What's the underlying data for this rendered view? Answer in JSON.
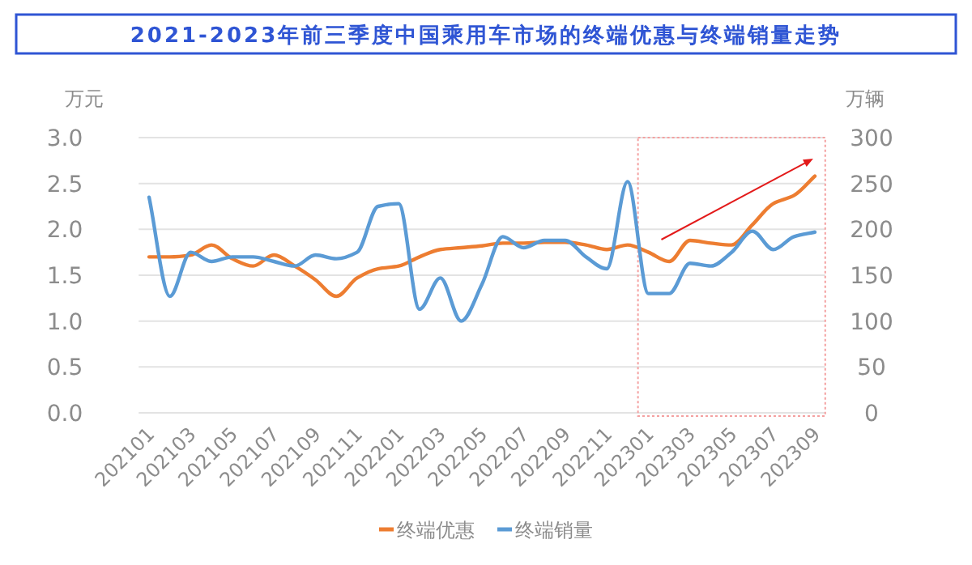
{
  "chart_data": {
    "type": "line",
    "title": "2021-2023年前三季度中国乘用车市场的终端优惠与终端销量走势",
    "ylabel": "万元",
    "y2label": "万辆",
    "categories": [
      "202101",
      null,
      "202103",
      null,
      "202105",
      null,
      "202107",
      null,
      "202109",
      null,
      "202111",
      null,
      "202201",
      null,
      "202203",
      null,
      "202205",
      null,
      "202207",
      null,
      "202209",
      null,
      "202211",
      null,
      "202301",
      null,
      "202303",
      null,
      "202305",
      null,
      "202307",
      null,
      "202309"
    ],
    "series": [
      {
        "name": "终端优惠",
        "color": "#ed7d31",
        "values": [
          1.7,
          1.7,
          1.72,
          1.83,
          1.68,
          1.6,
          1.72,
          1.6,
          1.45,
          1.27,
          1.47,
          1.57,
          1.6,
          1.7,
          1.78,
          1.8,
          1.82,
          1.85,
          1.85,
          1.86,
          1.86,
          1.83,
          1.78,
          1.83,
          1.75,
          1.65,
          1.88,
          1.85,
          1.83,
          2.05,
          2.28,
          2.37,
          2.58
        ]
      },
      {
        "name": "终端销量",
        "color": "#5b9bd5",
        "axis": "y2",
        "values": [
          235,
          127,
          175,
          165,
          170,
          170,
          165,
          160,
          172,
          168,
          175,
          225,
          228,
          113,
          147,
          100,
          140,
          192,
          180,
          188,
          188,
          170,
          157,
          252,
          130,
          130,
          163,
          160,
          175,
          198,
          178,
          192,
          197
        ]
      }
    ],
    "ylim": [
      0,
      3
    ],
    "yticks": [
      {
        "value": 0,
        "label": "0.0"
      },
      {
        "value": 0.5,
        "label": "0.5"
      },
      {
        "value": 1,
        "label": "1.0"
      },
      {
        "value": 1.5,
        "label": "1.5"
      },
      {
        "value": 2,
        "label": "2.0"
      },
      {
        "value": 2.5,
        "label": "2.5"
      },
      {
        "value": 3,
        "label": "3.0"
      }
    ],
    "y2lim": [
      0,
      300
    ],
    "y2ticks": [
      0,
      50,
      100,
      150,
      200,
      250,
      300
    ],
    "grid": "y",
    "legend": "bottom"
  }
}
